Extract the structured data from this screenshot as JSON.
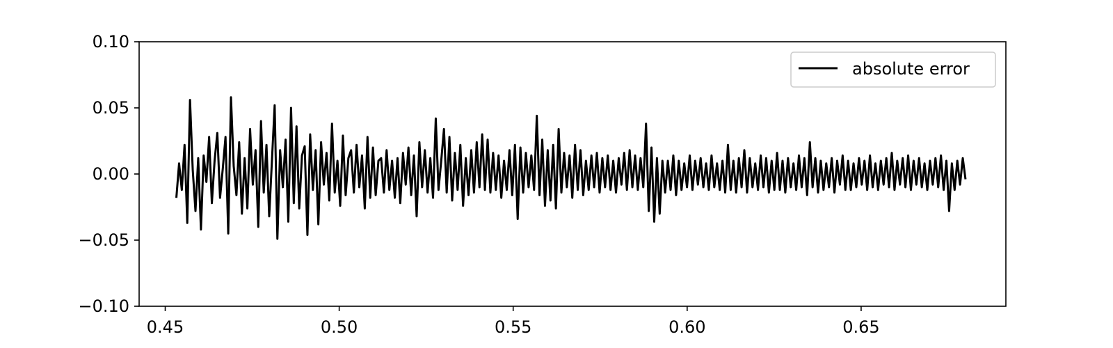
{
  "chart_data": {
    "type": "line",
    "title": "",
    "xlabel": "",
    "ylabel": "",
    "xlim": [
      0.4425,
      0.6916
    ],
    "ylim": [
      -0.1,
      0.1
    ],
    "x_ticks": [
      0.45,
      0.5,
      0.55,
      0.6,
      0.65
    ],
    "x_tick_labels": [
      "0.45",
      "0.50",
      "0.55",
      "0.60",
      "0.65"
    ],
    "y_ticks": [
      0.1,
      0.05,
      0.0,
      -0.05,
      -0.1
    ],
    "y_tick_labels": [
      "0.10",
      "0.05",
      "0.00",
      "−0.05",
      "−0.10"
    ],
    "grid": false,
    "legend": {
      "position": "top-right",
      "entries": [
        "absolute error"
      ]
    },
    "series": [
      {
        "name": "absolute error",
        "color": "#000000",
        "x_range": [
          0.4532,
          0.68
        ],
        "values": [
          -0.018,
          0.008,
          -0.012,
          0.022,
          -0.037,
          0.056,
          0.003,
          -0.028,
          0.012,
          -0.042,
          0.014,
          -0.006,
          0.028,
          -0.022,
          0.01,
          0.031,
          -0.018,
          0.004,
          0.028,
          -0.045,
          0.058,
          0.006,
          -0.016,
          0.024,
          -0.03,
          0.012,
          -0.026,
          0.034,
          -0.008,
          0.018,
          -0.04,
          0.04,
          -0.014,
          0.022,
          -0.032,
          0.01,
          0.052,
          -0.049,
          0.018,
          -0.01,
          0.026,
          -0.036,
          0.05,
          -0.022,
          0.036,
          -0.026,
          0.014,
          0.021,
          -0.046,
          0.03,
          -0.012,
          0.018,
          -0.038,
          0.024,
          -0.008,
          0.016,
          -0.02,
          0.038,
          -0.014,
          0.01,
          -0.024,
          0.029,
          -0.016,
          0.012,
          0.018,
          -0.014,
          0.022,
          -0.01,
          0.014,
          -0.026,
          0.028,
          -0.018,
          0.02,
          -0.016,
          0.01,
          0.012,
          -0.014,
          0.018,
          -0.012,
          0.01,
          -0.018,
          0.012,
          -0.022,
          0.016,
          -0.008,
          0.02,
          -0.016,
          0.014,
          -0.032,
          0.024,
          -0.01,
          0.018,
          -0.014,
          0.012,
          -0.018,
          0.042,
          -0.012,
          0.01,
          0.034,
          -0.014,
          0.028,
          -0.02,
          0.016,
          -0.012,
          0.022,
          -0.024,
          0.012,
          -0.016,
          0.018,
          -0.014,
          0.024,
          -0.01,
          0.03,
          -0.012,
          0.026,
          -0.014,
          0.016,
          -0.012,
          0.014,
          -0.018,
          0.01,
          -0.012,
          0.018,
          -0.016,
          0.022,
          -0.034,
          0.02,
          -0.014,
          0.016,
          -0.01,
          0.014,
          -0.012,
          0.044,
          -0.016,
          0.026,
          -0.024,
          0.018,
          -0.02,
          0.022,
          -0.026,
          0.034,
          -0.014,
          0.016,
          -0.01,
          0.014,
          -0.018,
          0.022,
          -0.012,
          0.018,
          -0.016,
          0.01,
          -0.012,
          0.014,
          -0.01,
          0.016,
          -0.014,
          0.012,
          -0.01,
          0.014,
          -0.012,
          0.01,
          -0.014,
          0.012,
          -0.008,
          0.016,
          -0.012,
          0.018,
          -0.01,
          0.014,
          -0.012,
          0.012,
          -0.01,
          0.038,
          -0.028,
          0.02,
          -0.036,
          0.012,
          -0.03,
          0.01,
          -0.014,
          0.01,
          -0.012,
          0.014,
          -0.016,
          0.01,
          -0.012,
          0.008,
          -0.01,
          0.014,
          -0.012,
          0.01,
          -0.008,
          0.012,
          -0.01,
          0.008,
          -0.012,
          0.014,
          -0.01,
          0.008,
          -0.012,
          0.01,
          -0.014,
          0.022,
          -0.012,
          0.01,
          -0.014,
          0.012,
          -0.01,
          0.018,
          -0.014,
          0.012,
          -0.01,
          0.008,
          -0.012,
          0.014,
          -0.01,
          0.012,
          -0.014,
          0.01,
          -0.012,
          0.016,
          -0.012,
          0.01,
          -0.014,
          0.012,
          -0.01,
          0.008,
          -0.012,
          0.014,
          -0.01,
          0.012,
          -0.016,
          0.024,
          -0.01,
          0.012,
          -0.014,
          0.01,
          -0.012,
          0.008,
          -0.01,
          0.012,
          -0.014,
          0.01,
          -0.008,
          0.014,
          -0.012,
          0.01,
          -0.012,
          0.008,
          -0.01,
          0.012,
          -0.008,
          0.01,
          -0.012,
          0.014,
          -0.01,
          0.008,
          -0.012,
          0.01,
          -0.008,
          0.012,
          -0.01,
          0.016,
          -0.012,
          0.01,
          -0.008,
          0.012,
          -0.01,
          0.014,
          -0.012,
          0.01,
          -0.008,
          0.012,
          -0.01,
          0.008,
          -0.012,
          0.01,
          -0.008,
          0.012,
          -0.01,
          0.014,
          -0.012,
          0.01,
          -0.028,
          0.008,
          -0.012,
          0.01,
          -0.008,
          0.012,
          -0.004
        ]
      }
    ]
  }
}
